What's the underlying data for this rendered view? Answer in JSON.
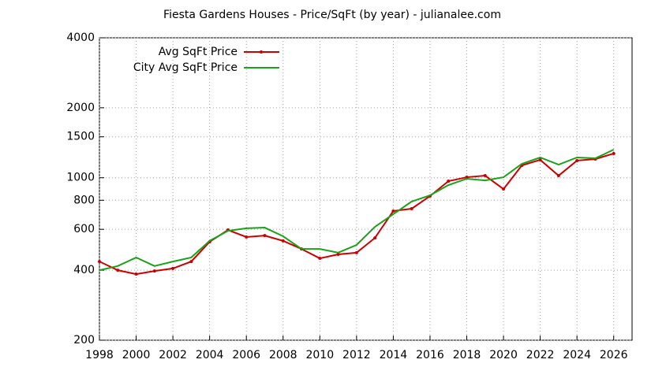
{
  "chart_data": {
    "type": "line",
    "title": "Fiesta Gardens Houses - Price/SqFt (by year) - julianalee.com",
    "x": [
      1998,
      1999,
      2000,
      2001,
      2002,
      2003,
      2004,
      2005,
      2006,
      2007,
      2008,
      2009,
      2010,
      2011,
      2012,
      2013,
      2014,
      2015,
      2016,
      2017,
      2018,
      2019,
      2020,
      2021,
      2022,
      2023,
      2024,
      2025,
      2026
    ],
    "series": [
      {
        "name": "Avg SqFt Price",
        "color": "#cc0000",
        "markers": true,
        "values": [
          436,
          400,
          385,
          397,
          407,
          436,
          530,
          596,
          556,
          564,
          535,
          494,
          450,
          468,
          476,
          551,
          719,
          736,
          834,
          967,
          1005,
          1021,
          894,
          1130,
          1194,
          1021,
          1185,
          1203,
          1271
        ]
      },
      {
        "name": "City Avg SqFt Price",
        "color": "#1aa31a",
        "markers": false,
        "values": [
          400,
          417,
          454,
          417,
          436,
          454,
          535,
          591,
          606,
          610,
          560,
          494,
          494,
          476,
          514,
          615,
          697,
          790,
          840,
          930,
          990,
          974,
          1005,
          1148,
          1222,
          1139,
          1222,
          1212,
          1321
        ]
      }
    ],
    "xlim": [
      1998,
      2027
    ],
    "xticks": [
      1998,
      2000,
      2002,
      2004,
      2006,
      2008,
      2010,
      2012,
      2014,
      2016,
      2018,
      2020,
      2022,
      2024,
      2026
    ],
    "ylim": [
      200,
      4000
    ],
    "yticks": [
      200,
      400,
      600,
      800,
      1000,
      1500,
      2000,
      4000
    ],
    "log_y": true,
    "grid": true,
    "legend": "top-left"
  }
}
